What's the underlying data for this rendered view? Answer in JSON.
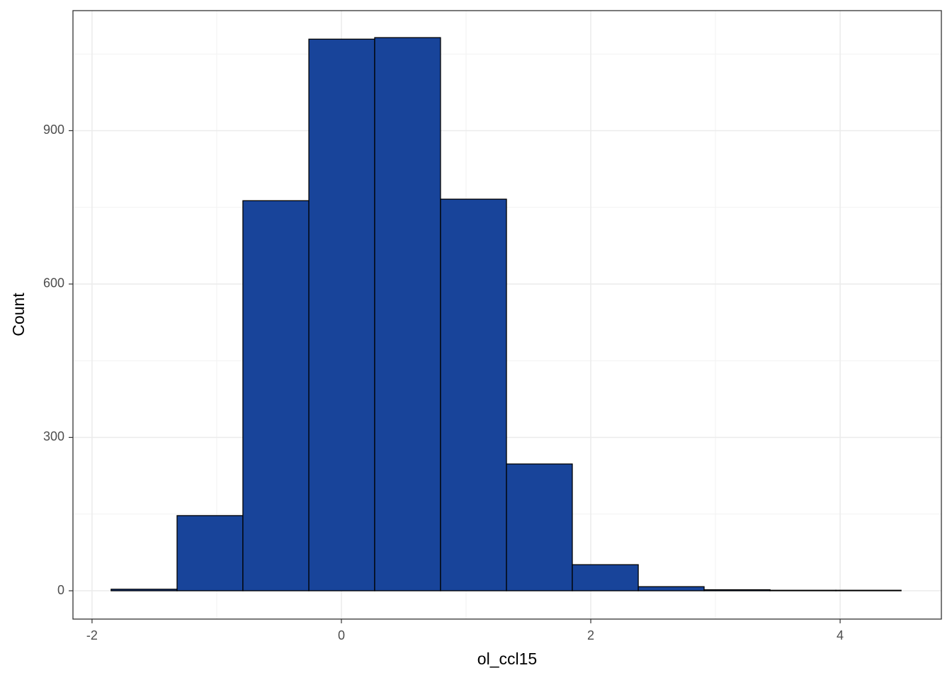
{
  "chart_data": {
    "type": "histogram",
    "x_label": "ol_ccl15",
    "y_label": "Count",
    "bins": [
      -1.847,
      -1.318,
      -0.79,
      -0.261,
      0.267,
      0.795,
      1.324,
      1.852,
      2.381,
      2.909,
      3.438,
      3.966,
      4.489
    ],
    "values": [
      3,
      147,
      763,
      1079,
      1082,
      766,
      248,
      51,
      8,
      2,
      1,
      1
    ],
    "color": "#18449a",
    "edge_color": "#000000",
    "xlim": [
      -2.153,
      4.812
    ],
    "xticks": [
      -2,
      0,
      2,
      4
    ],
    "x_minor_ticks": [
      -1,
      1,
      3
    ],
    "ylim": [
      -55.4,
      1134.8
    ],
    "yticks": [
      0,
      300,
      600,
      900
    ],
    "y_minor_ticks": [
      150,
      450,
      750,
      1050
    ],
    "grid": true
  }
}
